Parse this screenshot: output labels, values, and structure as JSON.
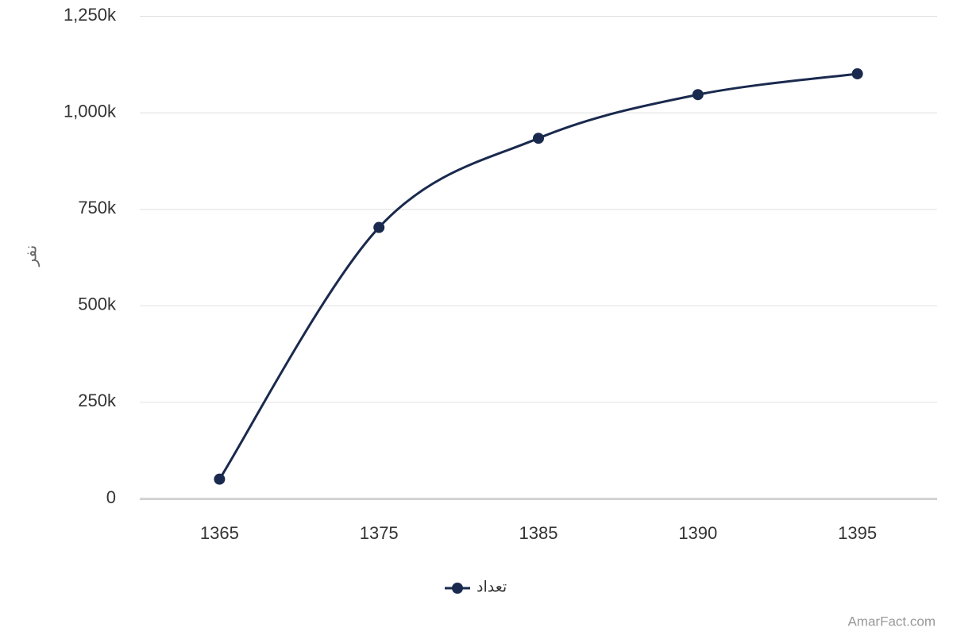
{
  "chart_data": {
    "type": "line",
    "y_label": "نفر",
    "categories": [
      "1365",
      "1375",
      "1385",
      "1390",
      "1395"
    ],
    "series": [
      {
        "name": "تعداد",
        "color": "#1a2a4e",
        "values": [
          50000,
          702000,
          933000,
          1046000,
          1100000
        ]
      }
    ],
    "ylim": [
      0,
      1250000
    ],
    "yticks": [
      0,
      {
        "value": 250000,
        "label": "250k"
      },
      {
        "value": 500000,
        "label": "500k"
      },
      {
        "value": 750000,
        "label": "750k"
      },
      {
        "value": 1000000,
        "label": "1,000k"
      },
      {
        "value": 1250000,
        "label": "1,250k"
      }
    ],
    "grid": true
  },
  "credit": "AmarFact.com"
}
